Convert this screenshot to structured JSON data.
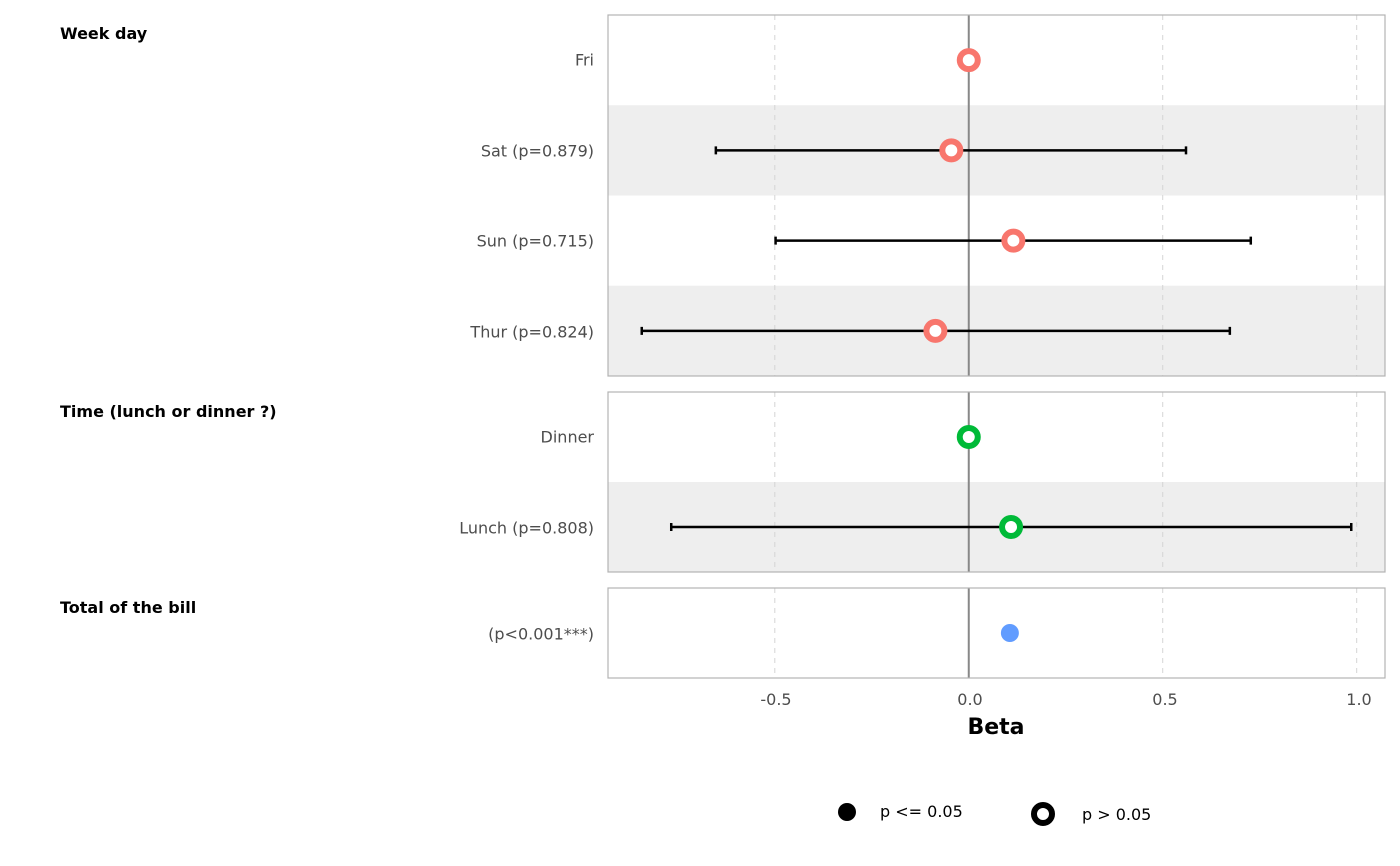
{
  "chart_data": {
    "type": "forest",
    "xlabel": "Beta",
    "xlim": [
      -0.93,
      1.073
    ],
    "x_ticks": [
      -0.5,
      0.0,
      0.5,
      1.0
    ],
    "x_tick_labels": [
      "-0.5",
      "0.0",
      "0.5",
      "1.0"
    ],
    "reference_line": 0,
    "grid": "dashed vertical",
    "legend": {
      "position": "bottom",
      "entries": [
        {
          "label": "p <= 0.05",
          "shape": "filled-circle"
        },
        {
          "label": "p > 0.05",
          "shape": "hollow-circle"
        }
      ]
    },
    "groups": [
      {
        "title": "Week day",
        "color": "#F8766D",
        "rows": [
          {
            "label": "Fri",
            "estimate": 0,
            "ci": null,
            "significant": false
          },
          {
            "label": "Sat (p=0.879)",
            "estimate": -0.045,
            "ci": [
              -0.652,
              0.56
            ],
            "significant": false
          },
          {
            "label": "Sun (p=0.715)",
            "estimate": 0.115,
            "ci": [
              -0.498,
              0.727
            ],
            "significant": false
          },
          {
            "label": "Thur (p=0.824)",
            "estimate": -0.086,
            "ci": [
              -0.843,
              0.673
            ],
            "significant": false
          }
        ]
      },
      {
        "title": "Time (lunch or dinner ?)",
        "color": "#00BA38",
        "rows": [
          {
            "label": "Dinner",
            "estimate": 0,
            "ci": null,
            "significant": false
          },
          {
            "label": "Lunch (p=0.808)",
            "estimate": 0.109,
            "ci": [
              -0.767,
              0.986
            ],
            "significant": false
          }
        ]
      },
      {
        "title": "Total of the bill",
        "color": "#619CFF",
        "rows": [
          {
            "label": "(p<0.001***)",
            "estimate": 0.106,
            "ci": null,
            "significant": true
          }
        ]
      }
    ]
  }
}
